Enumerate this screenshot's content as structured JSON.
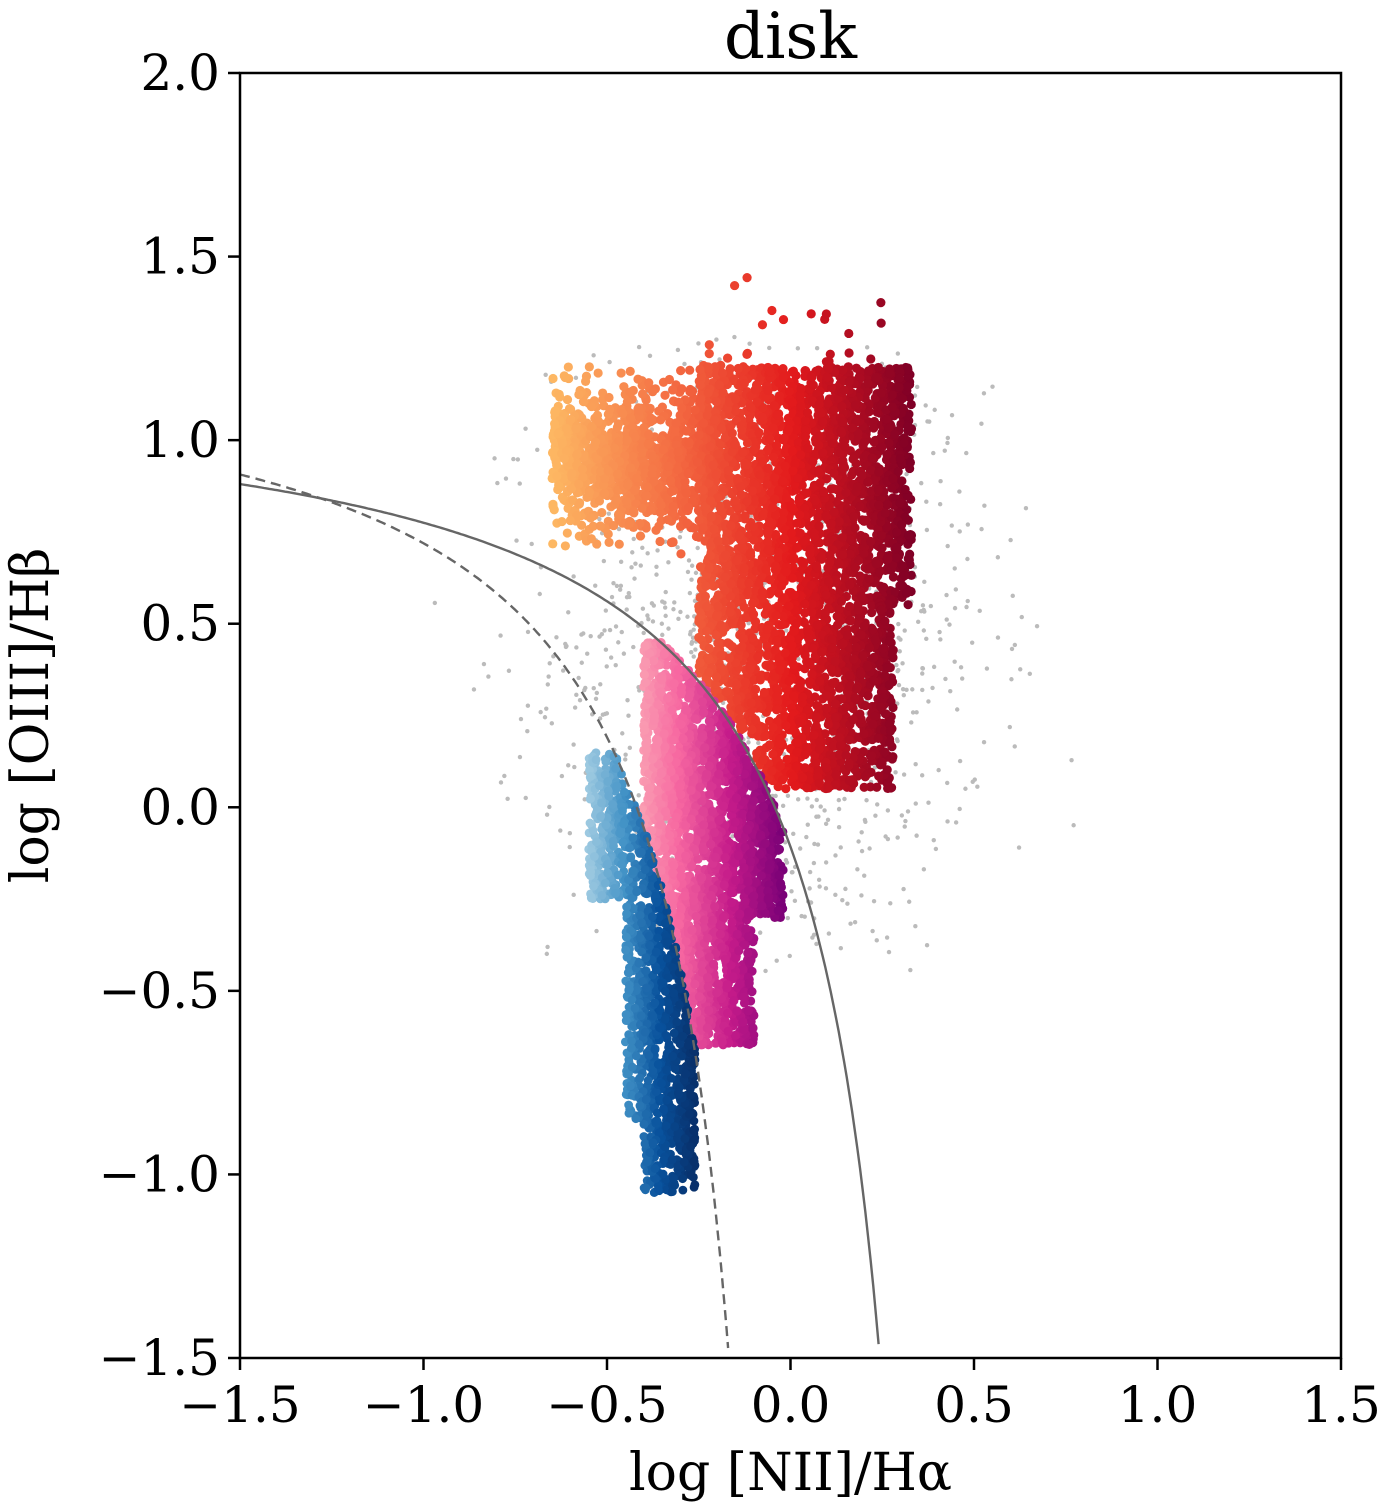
{
  "chart_data": {
    "type": "scatter",
    "title": "disk",
    "xlabel": "log [NII]/Hα",
    "ylabel": "log [OIII]/Hβ",
    "xlim": [
      -1.5,
      1.5
    ],
    "ylim": [
      -1.5,
      2.0
    ],
    "xticks": [
      -1.5,
      -1.0,
      -0.5,
      0.0,
      0.5,
      1.0,
      1.5
    ],
    "yticks": [
      -1.5,
      -1.0,
      -0.5,
      0.0,
      0.5,
      1.0,
      1.5,
      2.0
    ],
    "xtick_labels": [
      "−1.5",
      "−1.0",
      "−0.5",
      "0.0",
      "0.5",
      "1.0",
      "1.5"
    ],
    "ytick_labels": [
      "−1.5",
      "−1.0",
      "−0.5",
      "0.0",
      "0.5",
      "1.0",
      "1.5",
      "2.0"
    ],
    "grid": false,
    "legend": "none",
    "curves": [
      {
        "name": "",
        "style": "solid",
        "color": "#666666",
        "formula": "0.61/(x-0.47)+1.19",
        "x_range": [
          -1.5,
          0.24
        ]
      },
      {
        "name": "",
        "style": "dashed",
        "color": "#666666",
        "formula": "0.61/(x-0.05)+1.3",
        "x_range": [
          -1.5,
          -0.17
        ]
      }
    ],
    "point_groups": [
      {
        "name": "",
        "colormap": "grey",
        "color": "#bbbbbb",
        "size": "small",
        "region": {
          "x_center": -0.05,
          "y_center": 0.45,
          "x_spread": 0.42,
          "y_spread": 0.55
        }
      },
      {
        "name": "",
        "colormap": "YlOrRd",
        "colors": [
          "#fdb863",
          "#f46d43",
          "#e31a1c",
          "#800026"
        ],
        "size": "large",
        "region": {
          "x_min": -0.65,
          "x_max": 0.33,
          "y_min": -0.1,
          "y_max": 1.55,
          "boundary": "above solid curve"
        }
      },
      {
        "name": "",
        "colormap": "RdPu",
        "colors": [
          "#fbb4b9",
          "#f768a1",
          "#c51b8a",
          "#7a0177"
        ],
        "size": "large",
        "region": {
          "x_min": -0.45,
          "x_max": -0.02,
          "y_min": -0.65,
          "y_max": 0.45,
          "boundary": "between dashed and solid curve"
        }
      },
      {
        "name": "",
        "colormap": "Blues",
        "colors": [
          "#9ecae1",
          "#4292c6",
          "#08519c",
          "#08306b"
        ],
        "size": "large",
        "region": {
          "x_min": -0.55,
          "x_max": -0.26,
          "y_min": -1.05,
          "y_max": 0.15,
          "boundary": "below dashed curve"
        }
      }
    ]
  }
}
